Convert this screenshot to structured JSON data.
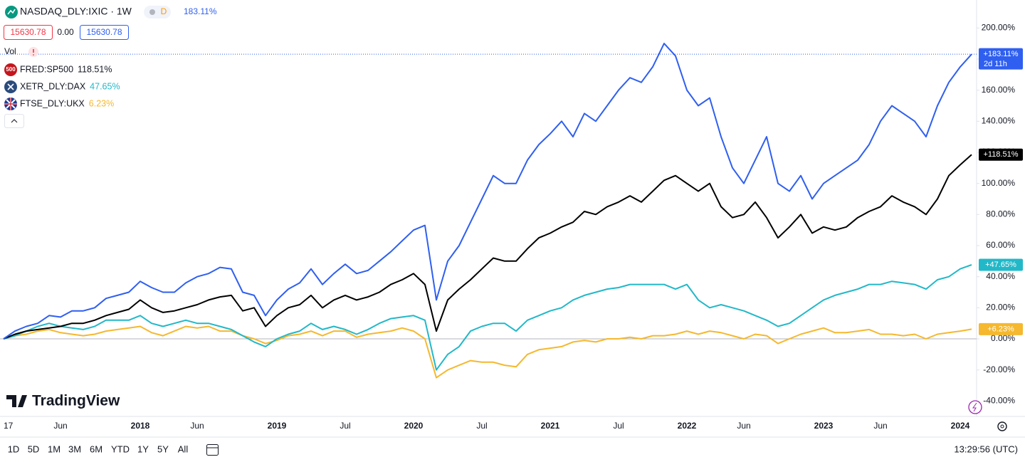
{
  "chart_data": {
    "type": "line",
    "categories": [
      "17",
      null,
      null,
      null,
      null,
      "Jun",
      null,
      null,
      null,
      null,
      null,
      null,
      "2018",
      null,
      null,
      null,
      null,
      "Jun",
      null,
      null,
      null,
      null,
      null,
      null,
      "2019",
      null,
      null,
      null,
      null,
      null,
      "Jul",
      null,
      null,
      null,
      null,
      null,
      "2020",
      null,
      null,
      null,
      null,
      null,
      "Jul",
      null,
      null,
      null,
      null,
      null,
      "2021",
      null,
      null,
      null,
      null,
      null,
      "Jul",
      null,
      null,
      null,
      null,
      null,
      "2022",
      null,
      null,
      null,
      null,
      "Jun",
      null,
      null,
      null,
      null,
      null,
      null,
      "2023",
      null,
      null,
      null,
      null,
      "Jun",
      null,
      null,
      null,
      null,
      null,
      null,
      "2024",
      null
    ],
    "ylim": [
      -49,
      218
    ],
    "yticks": [
      {
        "value": -40,
        "label": "-40.00%"
      },
      {
        "value": -20,
        "label": "-20.00%"
      },
      {
        "value": 0,
        "label": "0.00%"
      },
      {
        "value": 20,
        "label": "20.00%"
      },
      {
        "value": 40,
        "label": "40.00%"
      },
      {
        "value": 60,
        "label": "60.00%"
      },
      {
        "value": 80,
        "label": "80.00%"
      },
      {
        "value": 100,
        "label": "100.00%"
      },
      {
        "value": 120,
        "label": "120.00%"
      },
      {
        "value": 140,
        "label": "140.00%"
      },
      {
        "value": 160,
        "label": "160.00%"
      },
      {
        "value": 180,
        "label": "180.00%"
      },
      {
        "value": 200,
        "label": "200.00%"
      }
    ],
    "baseline": 0,
    "grid": false,
    "series": [
      {
        "name": "NASDAQ_DLY:IXIC · 1W",
        "color": "#2f5ff0",
        "legend_value": "183.11%",
        "badge": "+183.11%",
        "badge_sub": "2d 11h",
        "values": [
          0,
          5,
          8,
          10,
          15,
          14,
          18,
          18,
          20,
          26,
          28,
          30,
          37,
          33,
          30,
          30,
          36,
          40,
          42,
          46,
          45,
          30,
          28,
          15,
          25,
          32,
          36,
          45,
          35,
          42,
          48,
          42,
          44,
          50,
          56,
          63,
          70,
          73,
          25,
          50,
          60,
          75,
          90,
          105,
          100,
          100,
          115,
          125,
          132,
          140,
          130,
          145,
          140,
          150,
          160,
          168,
          165,
          175,
          190,
          182,
          160,
          150,
          155,
          130,
          110,
          100,
          115,
          130,
          100,
          95,
          105,
          90,
          100,
          105,
          110,
          115,
          125,
          140,
          150,
          145,
          140,
          130,
          150,
          165,
          175,
          183.11
        ]
      },
      {
        "name": "FRED:SP500",
        "color": "#000000",
        "icon_text": "500",
        "legend_value": "118.51%",
        "badge": "+118.51%",
        "values": [
          0,
          3,
          5,
          6,
          7,
          8,
          10,
          10,
          12,
          15,
          17,
          19,
          25,
          20,
          17,
          18,
          20,
          22,
          25,
          27,
          28,
          18,
          20,
          8,
          15,
          20,
          22,
          28,
          20,
          25,
          28,
          25,
          27,
          30,
          35,
          38,
          42,
          35,
          5,
          25,
          32,
          38,
          45,
          52,
          50,
          50,
          58,
          65,
          68,
          72,
          75,
          82,
          80,
          85,
          88,
          92,
          88,
          95,
          102,
          105,
          100,
          95,
          100,
          85,
          78,
          80,
          88,
          78,
          65,
          72,
          80,
          68,
          72,
          70,
          72,
          78,
          82,
          85,
          92,
          88,
          85,
          80,
          90,
          105,
          112,
          118.51
        ]
      },
      {
        "name": "XETR_DLY:DAX",
        "color": "#22b8c8",
        "legend_value": "47.65%",
        "badge": "+47.65%",
        "values": [
          0,
          2,
          5,
          8,
          10,
          8,
          7,
          6,
          8,
          12,
          12,
          12,
          15,
          10,
          8,
          10,
          12,
          10,
          10,
          8,
          6,
          2,
          -2,
          -5,
          0,
          3,
          5,
          10,
          6,
          8,
          6,
          3,
          6,
          10,
          13,
          14,
          15,
          12,
          -20,
          -10,
          -5,
          5,
          8,
          10,
          10,
          5,
          12,
          15,
          18,
          20,
          25,
          28,
          30,
          32,
          33,
          35,
          35,
          35,
          35,
          32,
          35,
          25,
          20,
          22,
          20,
          18,
          15,
          12,
          8,
          10,
          15,
          20,
          25,
          28,
          30,
          32,
          35,
          35,
          37,
          36,
          35,
          32,
          38,
          40,
          45,
          47.65
        ]
      },
      {
        "name": "FTSE_DLY:UKX",
        "color": "#f5b82e",
        "legend_value": "6.23%",
        "badge": "+6.23%",
        "values": [
          0,
          2,
          3,
          5,
          6,
          4,
          3,
          2,
          3,
          5,
          6,
          7,
          8,
          4,
          2,
          5,
          8,
          7,
          8,
          5,
          5,
          2,
          0,
          -3,
          -1,
          2,
          3,
          5,
          2,
          5,
          5,
          1,
          3,
          4,
          5,
          7,
          5,
          0,
          -25,
          -20,
          -17,
          -14,
          -15,
          -15,
          -17,
          -18,
          -10,
          -7,
          -6,
          -5,
          -2,
          -1,
          -2,
          0,
          0,
          1,
          0,
          2,
          2,
          3,
          5,
          3,
          5,
          4,
          2,
          0,
          3,
          2,
          -3,
          0,
          3,
          5,
          7,
          4,
          4,
          5,
          6,
          3,
          3,
          2,
          3,
          0,
          3,
          4,
          5,
          6.23
        ]
      }
    ]
  },
  "header": {
    "interval_badge": "D",
    "open": "15630.78",
    "change": "0.00",
    "close": "15630.78",
    "vol": "Vol"
  },
  "ui": {
    "logo": "TradingView",
    "ranges": [
      "1D",
      "5D",
      "1M",
      "3M",
      "6M",
      "YTD",
      "1Y",
      "5Y",
      "All"
    ],
    "clock": "13:29:56 (UTC)"
  }
}
